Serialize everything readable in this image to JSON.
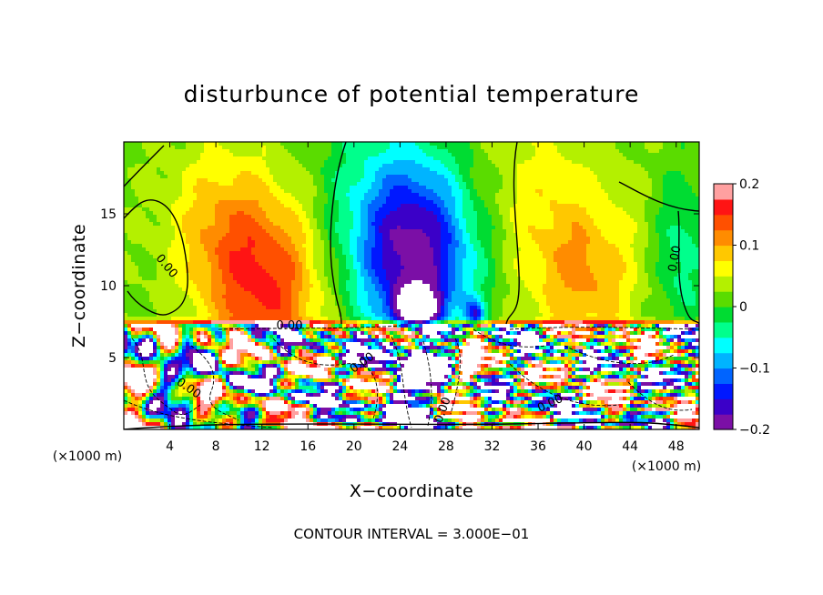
{
  "chart_data": {
    "type": "heatmap",
    "title": "disturbunce of potential temperature",
    "xlabel": "X−coordinate",
    "ylabel": "Z−coordinate",
    "x_unit_left": "(×1000 m)",
    "x_unit_right": "(×1000 m)",
    "xlim": [
      0,
      50
    ],
    "ylim": [
      0,
      20
    ],
    "xticks": [
      4,
      8,
      12,
      16,
      20,
      24,
      28,
      32,
      36,
      40,
      44,
      48
    ],
    "yticks": [
      5,
      10,
      15
    ],
    "colorbar": {
      "vmin": -0.2,
      "vmax": 0.2,
      "ticks": [
        0.2,
        0.1,
        0,
        -0.1,
        -0.2
      ],
      "tick_labels": [
        "0.2",
        "0.1",
        "0",
        "−0.1",
        "−0.2"
      ]
    },
    "contour_labels": [
      "0.00",
      "0.00",
      "0.00",
      "0.00",
      "0.00",
      "0.00",
      "0.00"
    ],
    "note": "CONTOUR INTERVAL = 3.000E−01",
    "inversion_height": 7.3,
    "upper_features": [
      {
        "name": "warm_anomaly",
        "x": 12,
        "z": 10.5,
        "value": 0.14
      },
      {
        "name": "cold_anomaly",
        "x": 25.5,
        "z": 11.5,
        "value": -0.2
      },
      {
        "name": "warm_anomaly_right",
        "x": 40,
        "z": 11,
        "value": 0.08
      }
    ]
  },
  "colors": {
    "colormap": [
      "#7b0fa6",
      "#3b00c8",
      "#0018ff",
      "#0064ff",
      "#00b4ff",
      "#00ffff",
      "#00ff8c",
      "#00dc32",
      "#5adc00",
      "#b4f000",
      "#ffff00",
      "#ffc800",
      "#ff8c00",
      "#ff5000",
      "#ff1414",
      "#ffa0a0"
    ]
  }
}
